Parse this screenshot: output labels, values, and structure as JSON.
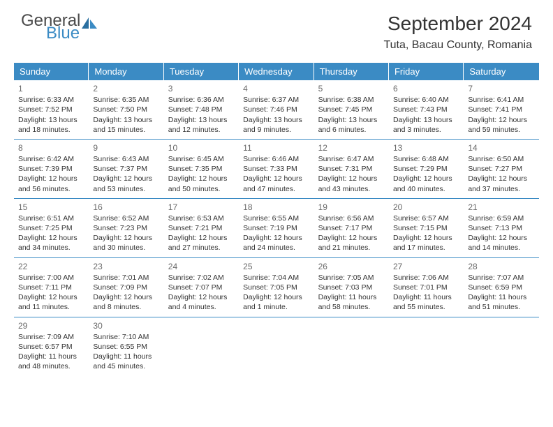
{
  "brand": {
    "text_general": "General",
    "text_blue": "Blue",
    "icon_color": "#3b8bc4"
  },
  "title": "September 2024",
  "location": "Tuta, Bacau County, Romania",
  "colors": {
    "header_bg": "#3b8bc4",
    "header_text": "#ffffff",
    "divider": "#3b8bc4",
    "body_text": "#333333",
    "daynum_text": "#6a6a6a",
    "background": "#ffffff"
  },
  "day_headers": [
    "Sunday",
    "Monday",
    "Tuesday",
    "Wednesday",
    "Thursday",
    "Friday",
    "Saturday"
  ],
  "days": [
    {
      "n": "1",
      "sunrise": "6:33 AM",
      "sunset": "7:52 PM",
      "daylight": "13 hours and 18 minutes."
    },
    {
      "n": "2",
      "sunrise": "6:35 AM",
      "sunset": "7:50 PM",
      "daylight": "13 hours and 15 minutes."
    },
    {
      "n": "3",
      "sunrise": "6:36 AM",
      "sunset": "7:48 PM",
      "daylight": "13 hours and 12 minutes."
    },
    {
      "n": "4",
      "sunrise": "6:37 AM",
      "sunset": "7:46 PM",
      "daylight": "13 hours and 9 minutes."
    },
    {
      "n": "5",
      "sunrise": "6:38 AM",
      "sunset": "7:45 PM",
      "daylight": "13 hours and 6 minutes."
    },
    {
      "n": "6",
      "sunrise": "6:40 AM",
      "sunset": "7:43 PM",
      "daylight": "13 hours and 3 minutes."
    },
    {
      "n": "7",
      "sunrise": "6:41 AM",
      "sunset": "7:41 PM",
      "daylight": "12 hours and 59 minutes."
    },
    {
      "n": "8",
      "sunrise": "6:42 AM",
      "sunset": "7:39 PM",
      "daylight": "12 hours and 56 minutes."
    },
    {
      "n": "9",
      "sunrise": "6:43 AM",
      "sunset": "7:37 PM",
      "daylight": "12 hours and 53 minutes."
    },
    {
      "n": "10",
      "sunrise": "6:45 AM",
      "sunset": "7:35 PM",
      "daylight": "12 hours and 50 minutes."
    },
    {
      "n": "11",
      "sunrise": "6:46 AM",
      "sunset": "7:33 PM",
      "daylight": "12 hours and 47 minutes."
    },
    {
      "n": "12",
      "sunrise": "6:47 AM",
      "sunset": "7:31 PM",
      "daylight": "12 hours and 43 minutes."
    },
    {
      "n": "13",
      "sunrise": "6:48 AM",
      "sunset": "7:29 PM",
      "daylight": "12 hours and 40 minutes."
    },
    {
      "n": "14",
      "sunrise": "6:50 AM",
      "sunset": "7:27 PM",
      "daylight": "12 hours and 37 minutes."
    },
    {
      "n": "15",
      "sunrise": "6:51 AM",
      "sunset": "7:25 PM",
      "daylight": "12 hours and 34 minutes."
    },
    {
      "n": "16",
      "sunrise": "6:52 AM",
      "sunset": "7:23 PM",
      "daylight": "12 hours and 30 minutes."
    },
    {
      "n": "17",
      "sunrise": "6:53 AM",
      "sunset": "7:21 PM",
      "daylight": "12 hours and 27 minutes."
    },
    {
      "n": "18",
      "sunrise": "6:55 AM",
      "sunset": "7:19 PM",
      "daylight": "12 hours and 24 minutes."
    },
    {
      "n": "19",
      "sunrise": "6:56 AM",
      "sunset": "7:17 PM",
      "daylight": "12 hours and 21 minutes."
    },
    {
      "n": "20",
      "sunrise": "6:57 AM",
      "sunset": "7:15 PM",
      "daylight": "12 hours and 17 minutes."
    },
    {
      "n": "21",
      "sunrise": "6:59 AM",
      "sunset": "7:13 PM",
      "daylight": "12 hours and 14 minutes."
    },
    {
      "n": "22",
      "sunrise": "7:00 AM",
      "sunset": "7:11 PM",
      "daylight": "12 hours and 11 minutes."
    },
    {
      "n": "23",
      "sunrise": "7:01 AM",
      "sunset": "7:09 PM",
      "daylight": "12 hours and 8 minutes."
    },
    {
      "n": "24",
      "sunrise": "7:02 AM",
      "sunset": "7:07 PM",
      "daylight": "12 hours and 4 minutes."
    },
    {
      "n": "25",
      "sunrise": "7:04 AM",
      "sunset": "7:05 PM",
      "daylight": "12 hours and 1 minute."
    },
    {
      "n": "26",
      "sunrise": "7:05 AM",
      "sunset": "7:03 PM",
      "daylight": "11 hours and 58 minutes."
    },
    {
      "n": "27",
      "sunrise": "7:06 AM",
      "sunset": "7:01 PM",
      "daylight": "11 hours and 55 minutes."
    },
    {
      "n": "28",
      "sunrise": "7:07 AM",
      "sunset": "6:59 PM",
      "daylight": "11 hours and 51 minutes."
    },
    {
      "n": "29",
      "sunrise": "7:09 AM",
      "sunset": "6:57 PM",
      "daylight": "11 hours and 48 minutes."
    },
    {
      "n": "30",
      "sunrise": "7:10 AM",
      "sunset": "6:55 PM",
      "daylight": "11 hours and 45 minutes."
    }
  ],
  "labels": {
    "sunrise": "Sunrise:",
    "sunset": "Sunset:",
    "daylight": "Daylight:"
  }
}
